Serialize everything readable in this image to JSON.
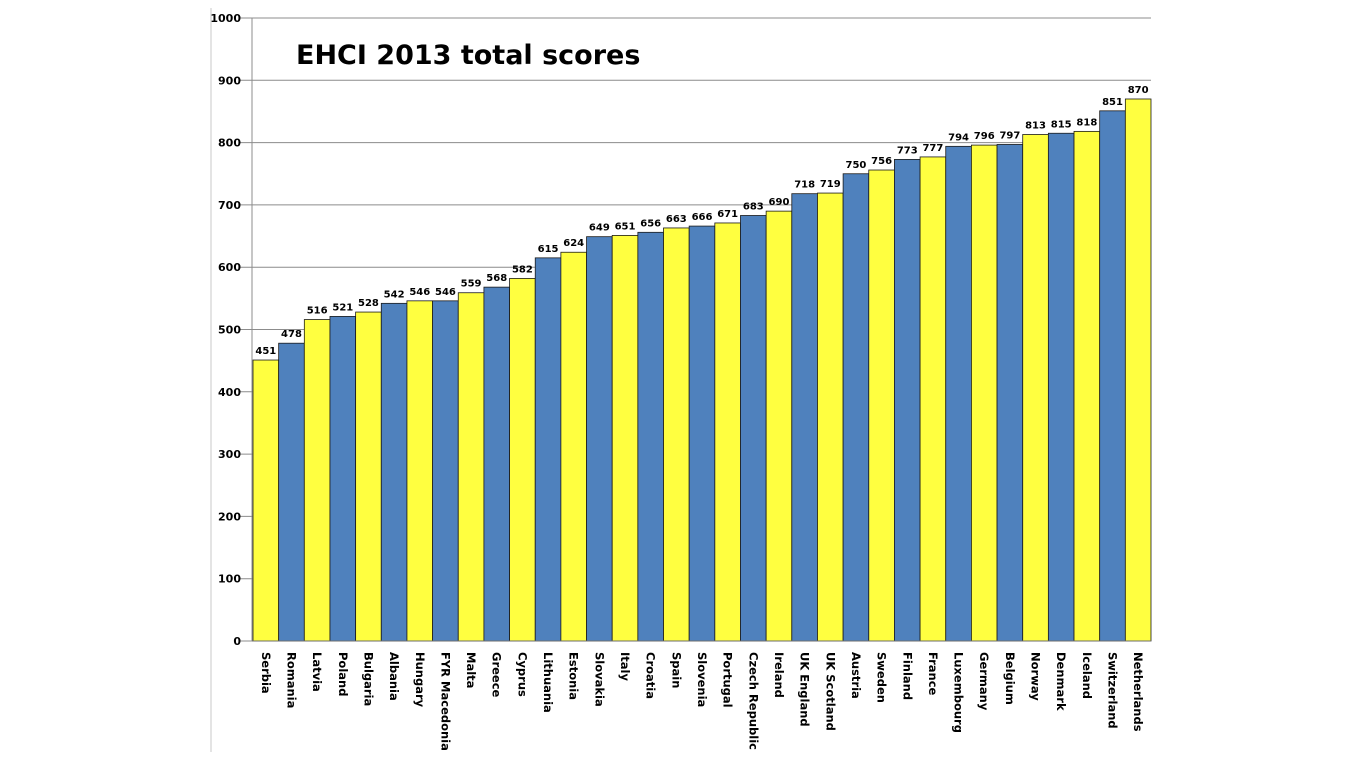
{
  "chart_data": {
    "type": "bar",
    "title": "EHCI 2013 total scores",
    "xlabel": "",
    "ylabel": "",
    "ylim": [
      0,
      1000
    ],
    "yticks": [
      0,
      100,
      200,
      300,
      400,
      500,
      600,
      700,
      800,
      900,
      1000
    ],
    "grid": "horizontal",
    "legend": "none",
    "categories": [
      "Serbia",
      "Romania",
      "Latvia",
      "Poland",
      "Bulgaria",
      "Albania",
      "Hungary",
      "FYR Macedonia",
      "Malta",
      "Greece",
      "Cyprus",
      "Lithuania",
      "Estonia",
      "Slovakia",
      "Italy",
      "Croatia",
      "Spain",
      "Slovenia",
      "Portugal",
      "Czech Republic",
      "Ireland",
      "UK England",
      "UK Scotland",
      "Austria",
      "Sweden",
      "Finland",
      "France",
      "Luxembourg",
      "Germany",
      "Belgium",
      "Norway",
      "Denmark",
      "Iceland",
      "Switzerland",
      "Netherlands"
    ],
    "values": [
      451,
      478,
      516,
      521,
      528,
      542,
      546,
      546,
      559,
      568,
      582,
      615,
      624,
      649,
      651,
      656,
      663,
      666,
      671,
      683,
      690,
      718,
      719,
      750,
      756,
      773,
      777,
      794,
      796,
      797,
      813,
      815,
      818,
      851,
      870
    ],
    "bar_colors": [
      "#ffff40",
      "#4f81bd"
    ]
  }
}
